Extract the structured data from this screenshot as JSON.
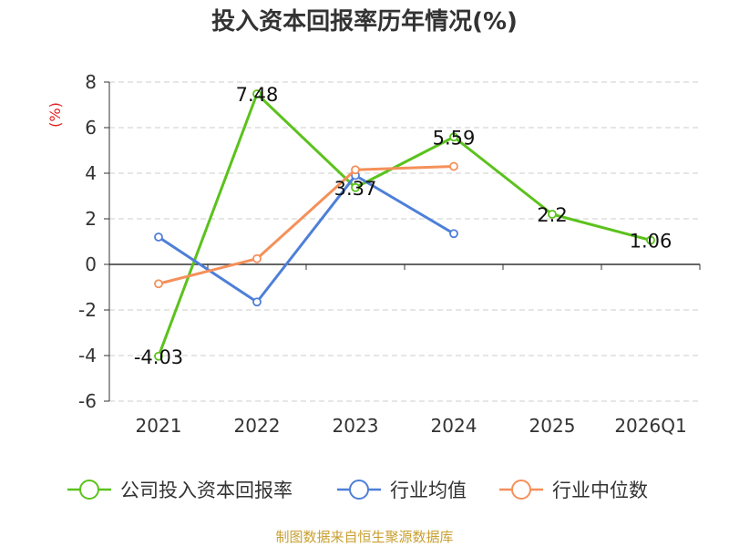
{
  "chart_data": {
    "type": "line",
    "title": "投入资本回报率历年情况(%)",
    "ylabel": "(%)",
    "categories": [
      "2021",
      "2022",
      "2023",
      "2024",
      "2025",
      "2026Q1"
    ],
    "ylim": [
      -6,
      8
    ],
    "yticks": [
      8,
      6,
      4,
      2,
      0,
      -2,
      -4,
      -6
    ],
    "ytick_labels": [
      "8",
      "6",
      "4",
      "2",
      "0",
      "-2",
      "-4",
      "-6"
    ],
    "grid": true,
    "legend_position": "bottom",
    "series": [
      {
        "name": "公司投入资本回报率",
        "color": "#5bc21c",
        "values": [
          -4.03,
          7.48,
          3.37,
          5.59,
          2.2,
          1.06
        ],
        "labels": [
          "-4.03",
          "7.48",
          "3.37",
          "5.59",
          "2.2",
          "1.06"
        ]
      },
      {
        "name": "行业均值",
        "color": "#4e7fd8",
        "values": [
          1.2,
          -1.65,
          3.9,
          1.35,
          null,
          null
        ]
      },
      {
        "name": "行业中位数",
        "color": "#f5905a",
        "values": [
          -0.85,
          0.25,
          4.15,
          4.3,
          null,
          null
        ]
      }
    ]
  },
  "source": "制图数据来自恒生聚源数据库"
}
